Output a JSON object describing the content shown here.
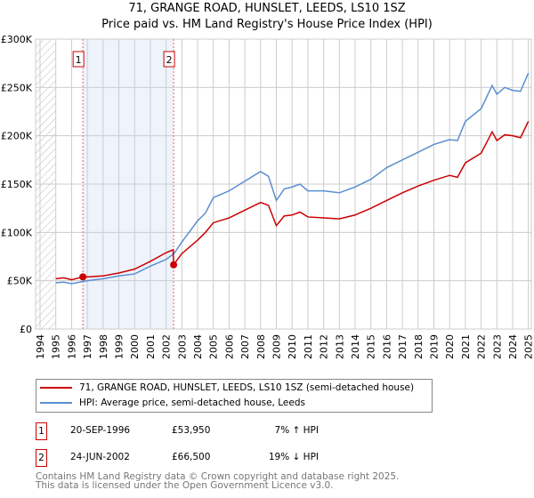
{
  "title": "71, GRANGE ROAD, HUNSLET, LEEDS, LS10 1SZ",
  "subtitle": "Price paid vs. HM Land Registry's House Price Index (HPI)",
  "chart_data": {
    "type": "line",
    "title": "71, GRANGE ROAD, HUNSLET, LEEDS, LS10 1SZ - Price paid vs. HM Land Registry's House Price Index (HPI)",
    "xlim": [
      1994,
      2025
    ],
    "ylim": [
      0,
      300000
    ],
    "x_ticks": [
      "1994",
      "1995",
      "1996",
      "1997",
      "1998",
      "1999",
      "2000",
      "2001",
      "2002",
      "2003",
      "2004",
      "2005",
      "2006",
      "2007",
      "2008",
      "2009",
      "2010",
      "2011",
      "2012",
      "2013",
      "2014",
      "2015",
      "2016",
      "2017",
      "2018",
      "2019",
      "2020",
      "2021",
      "2022",
      "2023",
      "2024",
      "2025"
    ],
    "y_ticks": [
      {
        "v": 0,
        "label": "£0"
      },
      {
        "v": 50000,
        "label": "£50K"
      },
      {
        "v": 100000,
        "label": "£100K"
      },
      {
        "v": 150000,
        "label": "£150K"
      },
      {
        "v": 200000,
        "label": "£200K"
      },
      {
        "v": 250000,
        "label": "£250K"
      },
      {
        "v": 300000,
        "label": "£300K"
      }
    ],
    "grid": true,
    "series": [
      {
        "name": "71, GRANGE ROAD, HUNSLET, LEEDS, LS10 1SZ (semi-detached house)",
        "color": "#cc0000",
        "x": [
          1995,
          1995.5,
          1996,
          1996.72,
          1997,
          1998,
          1999,
          2000,
          2001,
          2002,
          2002.45,
          2002.48,
          2003,
          2004,
          2004.5,
          2005,
          2006,
          2007,
          2008,
          2008.5,
          2009,
          2009.5,
          2010,
          2010.5,
          2011,
          2012,
          2013,
          2014,
          2015,
          2016,
          2017,
          2018,
          2019,
          2020,
          2020.5,
          2021,
          2022,
          2022.7,
          2023,
          2023.5,
          2024,
          2024.5,
          2025
        ],
        "y": [
          52000,
          53000,
          51000,
          53950,
          54000,
          55000,
          58000,
          62000,
          70000,
          79000,
          82000,
          66500,
          78000,
          92000,
          100000,
          110000,
          115000,
          123000,
          131000,
          128000,
          107000,
          117000,
          118000,
          121000,
          116000,
          115000,
          114000,
          118000,
          125000,
          133000,
          141000,
          148000,
          154000,
          159000,
          157000,
          172000,
          182000,
          204000,
          195000,
          201000,
          200000,
          198000,
          215000
        ]
      },
      {
        "name": "HPI: Average price, semi-detached house, Leeds",
        "color": "#5b8fd0",
        "x": [
          1995,
          1995.5,
          1996,
          1997,
          1998,
          1999,
          2000,
          2001,
          2002,
          2002.5,
          2003,
          2004,
          2004.5,
          2005,
          2006,
          2007,
          2007.5,
          2008,
          2008.5,
          2009,
          2009.5,
          2010,
          2010.5,
          2011,
          2012,
          2013,
          2014,
          2015,
          2016,
          2017,
          2018,
          2019,
          2020,
          2020.5,
          2021,
          2022,
          2022.7,
          2023,
          2023.5,
          2024,
          2024.5,
          2025
        ],
        "y": [
          48000,
          48500,
          47000,
          50000,
          52000,
          55000,
          57000,
          65000,
          72000,
          78000,
          90000,
          112000,
          120000,
          136000,
          143000,
          153000,
          158000,
          163000,
          158000,
          133000,
          145000,
          147000,
          150000,
          143000,
          143000,
          141000,
          147000,
          155000,
          167000,
          175000,
          183000,
          191000,
          196000,
          195000,
          215000,
          228000,
          252000,
          243000,
          250000,
          247000,
          246000,
          265000
        ]
      }
    ],
    "sales": [
      {
        "n": "1",
        "x": 1996.72,
        "y": 53950
      },
      {
        "n": "2",
        "x": 2002.48,
        "y": 66500
      }
    ],
    "shaded_range": [
      1996.72,
      2002.48
    ],
    "hatched_range": [
      1994,
      1995
    ]
  },
  "legend": {
    "property": "71, GRANGE ROAD, HUNSLET, LEEDS, LS10 1SZ (semi-detached house)",
    "hpi": "HPI: Average price, semi-detached house, Leeds"
  },
  "transactions": [
    {
      "n": "1",
      "date": "20-SEP-1996",
      "price": "£53,950",
      "hpi": "7% ↑ HPI"
    },
    {
      "n": "2",
      "date": "24-JUN-2002",
      "price": "£66,500",
      "hpi": "19% ↓ HPI"
    }
  ],
  "footer": {
    "line1": "Contains HM Land Registry data © Crown copyright and database right 2025.",
    "line2": "This data is licensed under the Open Government Licence v3.0."
  }
}
